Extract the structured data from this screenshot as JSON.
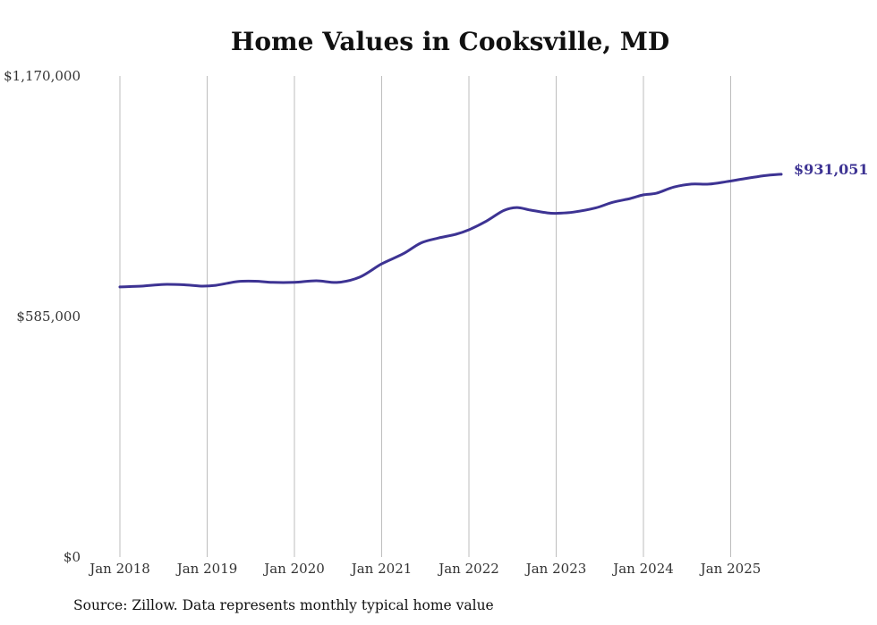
{
  "chart_data": {
    "type": "line",
    "title": "Home Values in Cooksville, MD",
    "xlabel": "",
    "ylabel": "",
    "ylim": [
      0,
      1170000
    ],
    "y_ticks": [
      {
        "value": 0,
        "label": "$0"
      },
      {
        "value": 585000,
        "label": "$585,000"
      },
      {
        "value": 1170000,
        "label": "$1,170,000"
      }
    ],
    "x_ticks": [
      {
        "value": 2018.0,
        "label": "Jan 2018"
      },
      {
        "value": 2019.0,
        "label": "Jan 2019"
      },
      {
        "value": 2020.0,
        "label": "Jan 2020"
      },
      {
        "value": 2021.0,
        "label": "Jan 2021"
      },
      {
        "value": 2022.0,
        "label": "Jan 2022"
      },
      {
        "value": 2023.0,
        "label": "Jan 2023"
      },
      {
        "value": 2024.0,
        "label": "Jan 2024"
      },
      {
        "value": 2025.0,
        "label": "Jan 2025"
      }
    ],
    "xlim": [
      2017.3,
      2025.6
    ],
    "grid": "vertical",
    "series": [
      {
        "color": "#3d3393",
        "end_label": "$931,051",
        "points": [
          {
            "x": 2018.0,
            "y": 657000
          },
          {
            "x": 2018.25,
            "y": 659000
          },
          {
            "x": 2018.5,
            "y": 663000
          },
          {
            "x": 2018.75,
            "y": 662000
          },
          {
            "x": 2018.95,
            "y": 659000
          },
          {
            "x": 2019.1,
            "y": 661000
          },
          {
            "x": 2019.35,
            "y": 670000
          },
          {
            "x": 2019.55,
            "y": 671000
          },
          {
            "x": 2019.75,
            "y": 668000
          },
          {
            "x": 2020.0,
            "y": 668000
          },
          {
            "x": 2020.25,
            "y": 672000
          },
          {
            "x": 2020.5,
            "y": 668000
          },
          {
            "x": 2020.75,
            "y": 681000
          },
          {
            "x": 2021.0,
            "y": 713000
          },
          {
            "x": 2021.25,
            "y": 738000
          },
          {
            "x": 2021.45,
            "y": 764000
          },
          {
            "x": 2021.65,
            "y": 776000
          },
          {
            "x": 2021.85,
            "y": 785000
          },
          {
            "x": 2022.0,
            "y": 796000
          },
          {
            "x": 2022.2,
            "y": 817000
          },
          {
            "x": 2022.4,
            "y": 843000
          },
          {
            "x": 2022.55,
            "y": 850000
          },
          {
            "x": 2022.7,
            "y": 844000
          },
          {
            "x": 2022.9,
            "y": 837000
          },
          {
            "x": 2023.0,
            "y": 836000
          },
          {
            "x": 2023.2,
            "y": 839000
          },
          {
            "x": 2023.45,
            "y": 849000
          },
          {
            "x": 2023.65,
            "y": 863000
          },
          {
            "x": 2023.85,
            "y": 872000
          },
          {
            "x": 2024.0,
            "y": 881000
          },
          {
            "x": 2024.15,
            "y": 885000
          },
          {
            "x": 2024.35,
            "y": 900000
          },
          {
            "x": 2024.55,
            "y": 907000
          },
          {
            "x": 2024.75,
            "y": 907000
          },
          {
            "x": 2024.95,
            "y": 913000
          },
          {
            "x": 2025.15,
            "y": 920000
          },
          {
            "x": 2025.3,
            "y": 925000
          },
          {
            "x": 2025.45,
            "y": 929000
          },
          {
            "x": 2025.58,
            "y": 931051
          }
        ]
      }
    ],
    "source_note": "Source: Zillow. Data represents monthly typical home value"
  }
}
